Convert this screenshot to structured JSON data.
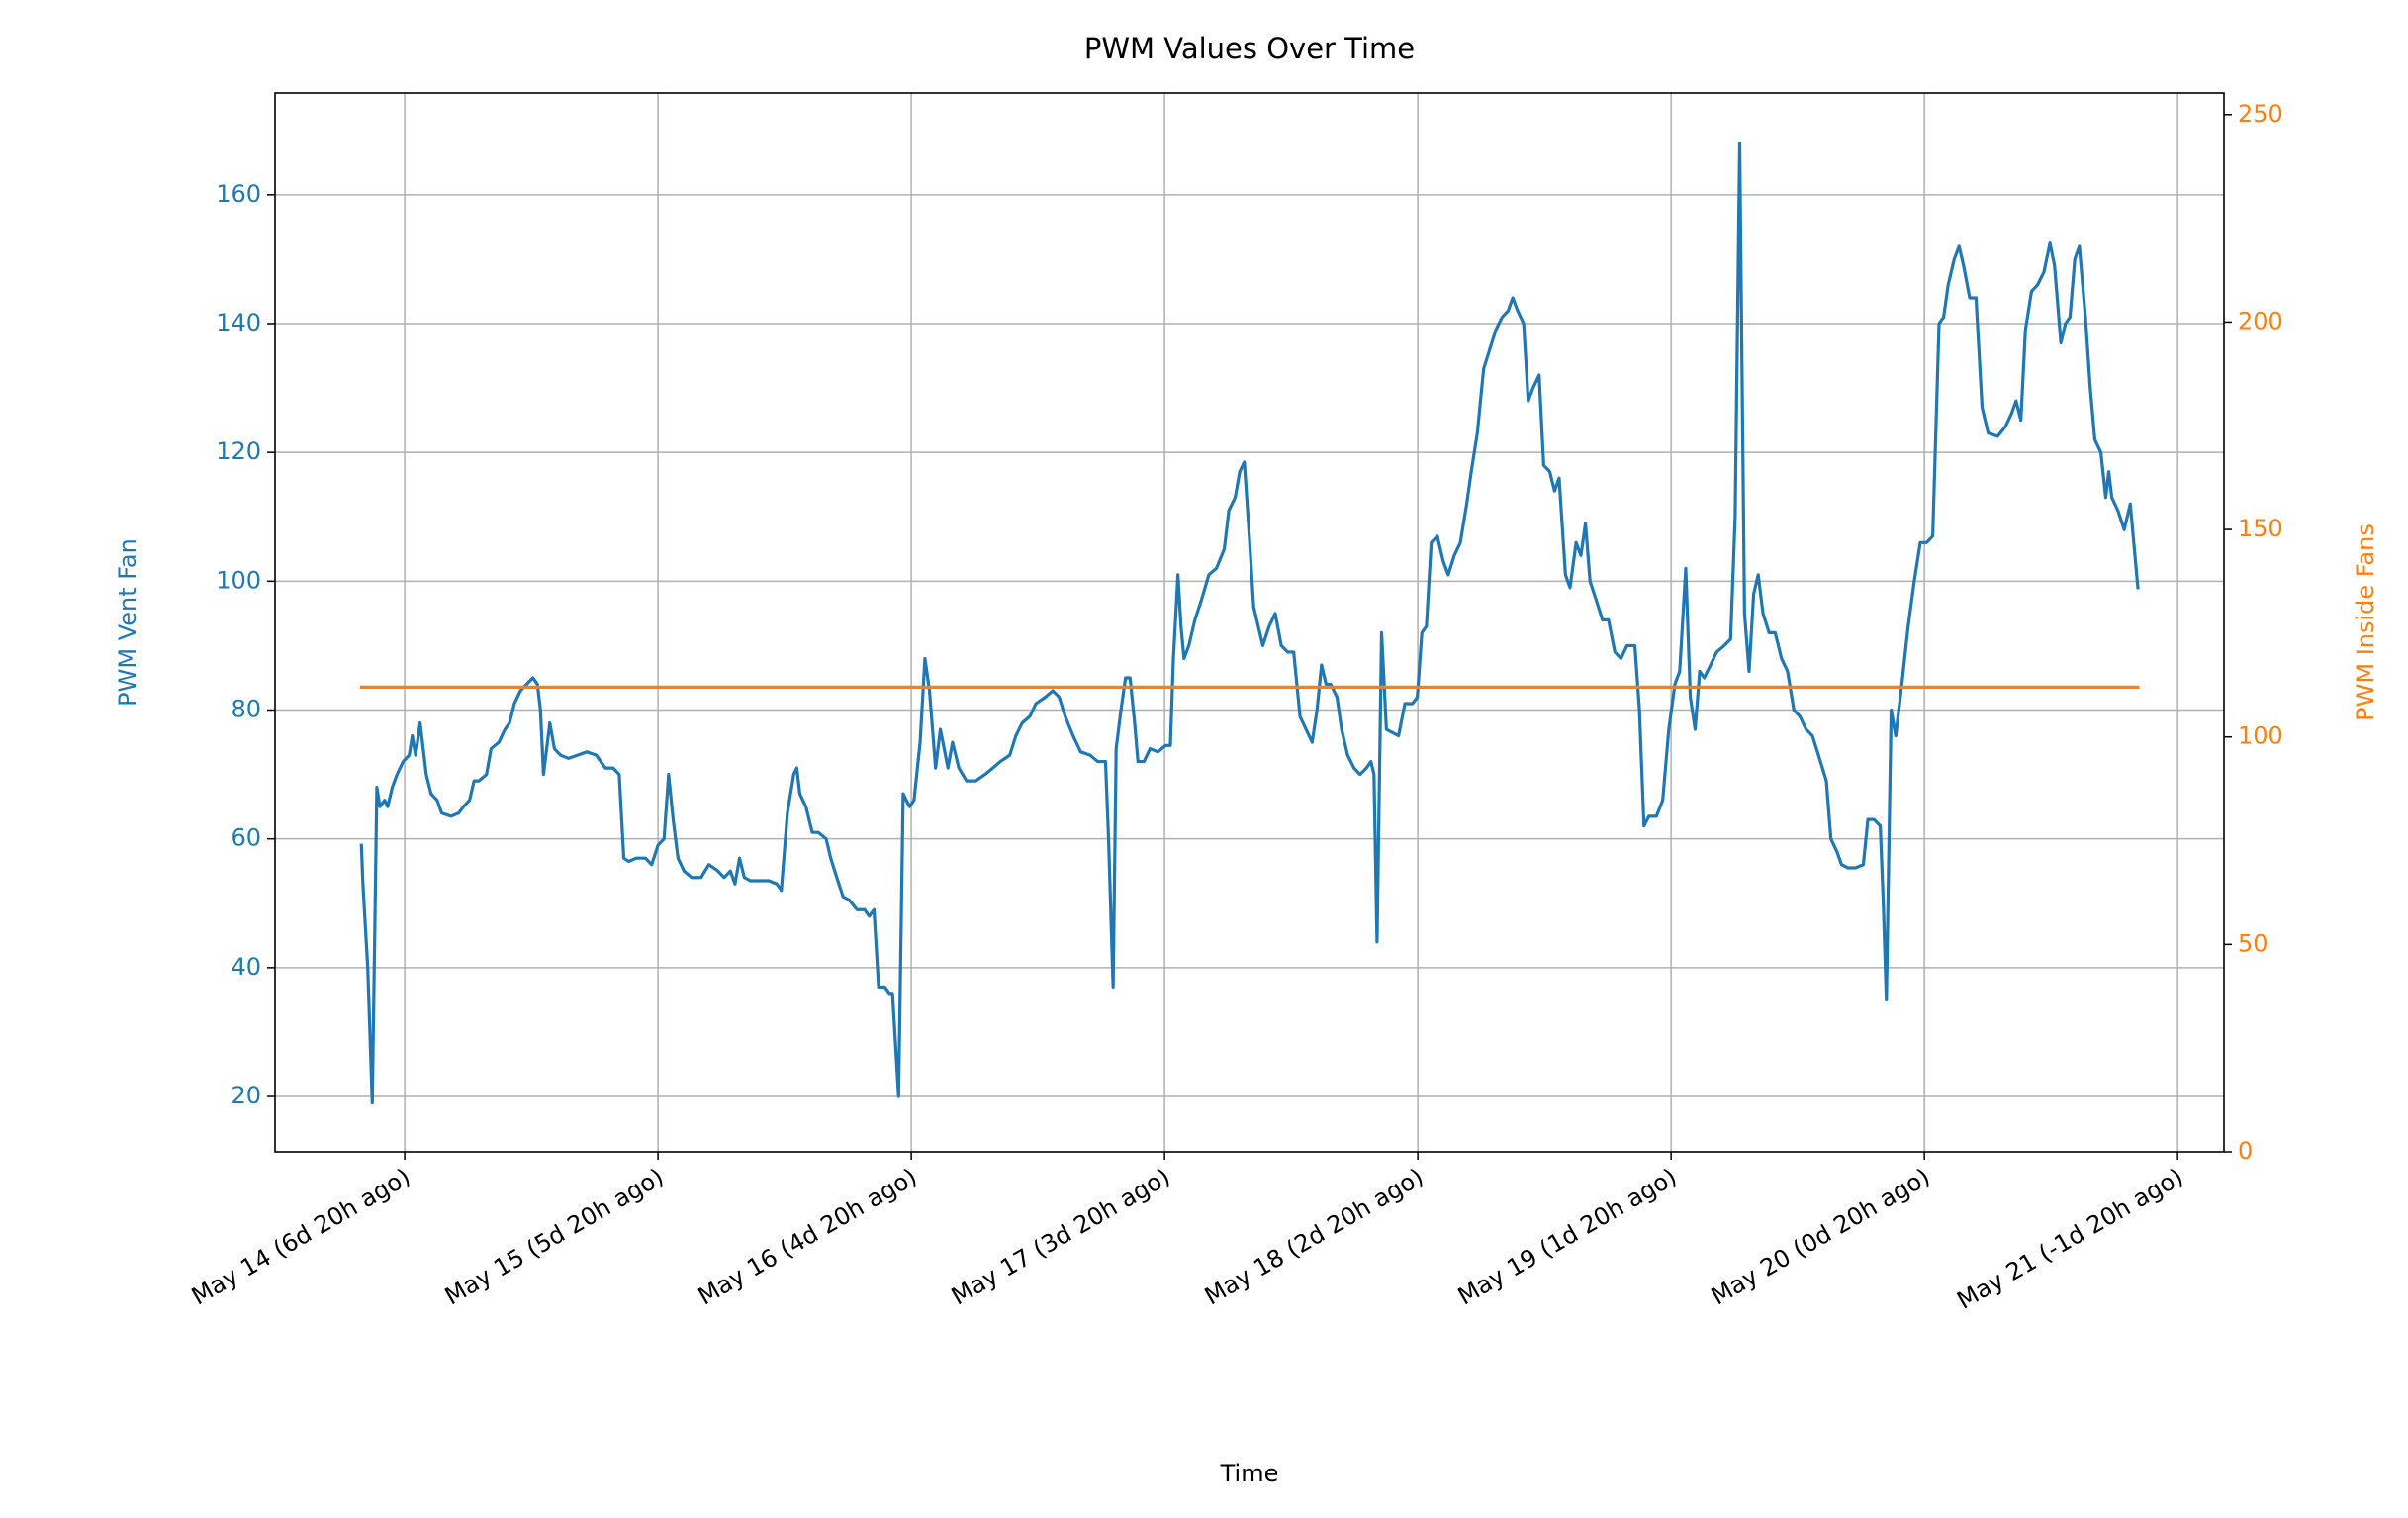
{
  "chart_data": {
    "type": "line",
    "title": "PWM Values Over Time",
    "x_label": "Time",
    "y_label": "PWM Vent Fan",
    "y2_label": "PWM Inside Fans",
    "xlim": [
      13.488,
      21.183
    ],
    "xticks": [
      {
        "value": 14,
        "label": "May 14 (6d 20h ago)"
      },
      {
        "value": 15,
        "label": "May 15 (5d 20h ago)"
      },
      {
        "value": 16,
        "label": "May 16 (4d 20h ago)"
      },
      {
        "value": 17,
        "label": "May 17 (3d 20h ago)"
      },
      {
        "value": 18,
        "label": "May 18 (2d 20h ago)"
      },
      {
        "value": 19,
        "label": "May 19 (1d 20h ago)"
      },
      {
        "value": 20,
        "label": "May 20 (0d 20h ago)"
      },
      {
        "value": 21,
        "label": "May 21 (-1d 20h ago)"
      }
    ],
    "ylim": [
      11.4,
      175.8
    ],
    "yticks": [
      20,
      40,
      60,
      80,
      100,
      120,
      140,
      160
    ],
    "y2lim": [
      0,
      255.2
    ],
    "y2ticks": [
      0,
      50,
      100,
      150,
      200,
      250
    ],
    "grid": true,
    "series": [
      {
        "name": "PWM Vent Fan",
        "color": "#1f77b4",
        "x": [
          13.829,
          13.835,
          13.854,
          13.872,
          13.89,
          13.902,
          13.921,
          13.933,
          13.951,
          13.97,
          13.994,
          14.018,
          14.03,
          14.043,
          14.061,
          14.085,
          14.104,
          14.128,
          14.146,
          14.183,
          14.213,
          14.232,
          14.256,
          14.274,
          14.293,
          14.323,
          14.341,
          14.372,
          14.396,
          14.414,
          14.433,
          14.457,
          14.481,
          14.506,
          14.524,
          14.536,
          14.548,
          14.573,
          14.591,
          14.615,
          14.646,
          14.683,
          14.719,
          14.756,
          14.792,
          14.823,
          14.847,
          14.865,
          14.884,
          14.914,
          14.951,
          14.975,
          15.0,
          15.024,
          15.042,
          15.06,
          15.079,
          15.103,
          15.133,
          15.17,
          15.201,
          15.237,
          15.261,
          15.286,
          15.304,
          15.322,
          15.341,
          15.365,
          15.402,
          15.438,
          15.469,
          15.487,
          15.511,
          15.536,
          15.548,
          15.56,
          15.584,
          15.609,
          15.633,
          15.664,
          15.682,
          15.706,
          15.731,
          15.755,
          15.786,
          15.816,
          15.834,
          15.853,
          15.871,
          15.895,
          15.914,
          15.926,
          15.95,
          15.968,
          15.993,
          16.011,
          16.035,
          16.054,
          16.072,
          16.096,
          16.115,
          16.145,
          16.163,
          16.188,
          16.218,
          16.255,
          16.291,
          16.322,
          16.352,
          16.389,
          16.413,
          16.438,
          16.468,
          16.492,
          16.529,
          16.559,
          16.584,
          16.608,
          16.639,
          16.669,
          16.706,
          16.736,
          16.767,
          16.779,
          16.797,
          16.809,
          16.828,
          16.846,
          16.864,
          16.882,
          16.895,
          16.919,
          16.943,
          16.974,
          17.004,
          17.023,
          17.035,
          17.053,
          17.065,
          17.077,
          17.096,
          17.12,
          17.145,
          17.175,
          17.205,
          17.236,
          17.254,
          17.279,
          17.297,
          17.315,
          17.333,
          17.352,
          17.37,
          17.388,
          17.413,
          17.437,
          17.461,
          17.486,
          17.51,
          17.535,
          17.559,
          17.583,
          17.602,
          17.62,
          17.638,
          17.656,
          17.681,
          17.699,
          17.723,
          17.748,
          17.772,
          17.797,
          17.815,
          17.827,
          17.839,
          17.857,
          17.876,
          17.9,
          17.924,
          17.949,
          17.979,
          17.998,
          18.016,
          18.034,
          18.053,
          18.077,
          18.101,
          18.12,
          18.144,
          18.168,
          18.193,
          18.211,
          18.235,
          18.26,
          18.284,
          18.308,
          18.333,
          18.357,
          18.375,
          18.394,
          18.418,
          18.436,
          18.455,
          18.479,
          18.497,
          18.521,
          18.54,
          18.558,
          18.583,
          18.601,
          18.625,
          18.644,
          18.662,
          18.68,
          18.705,
          18.729,
          18.753,
          18.778,
          18.802,
          18.826,
          18.857,
          18.875,
          18.893,
          18.912,
          18.942,
          18.967,
          18.991,
          19.015,
          19.034,
          19.058,
          19.076,
          19.095,
          19.113,
          19.131,
          19.156,
          19.18,
          19.21,
          19.235,
          19.253,
          19.271,
          19.29,
          19.308,
          19.326,
          19.344,
          19.363,
          19.387,
          19.411,
          19.436,
          19.46,
          19.485,
          19.509,
          19.533,
          19.558,
          19.582,
          19.613,
          19.631,
          19.655,
          19.673,
          19.698,
          19.728,
          19.759,
          19.777,
          19.801,
          19.826,
          19.838,
          19.85,
          19.869,
          19.887,
          19.911,
          19.936,
          19.96,
          19.984,
          20.009,
          20.033,
          20.058,
          20.076,
          20.094,
          20.118,
          20.137,
          20.155,
          20.179,
          20.204,
          20.228,
          20.252,
          20.289,
          20.32,
          20.344,
          20.362,
          20.381,
          20.399,
          20.423,
          20.447,
          20.472,
          20.496,
          20.514,
          20.539,
          20.557,
          20.575,
          20.594,
          20.612,
          20.636,
          20.655,
          20.673,
          20.697,
          20.716,
          20.728,
          20.74,
          20.764,
          20.789,
          20.813,
          20.843
        ],
        "values": [
          59,
          53,
          40,
          19,
          68,
          65,
          66,
          65,
          68,
          70,
          72,
          73,
          76,
          73,
          78,
          70,
          67,
          66,
          64,
          63.5,
          64,
          65,
          66,
          69,
          69,
          70,
          74,
          75,
          77,
          78,
          81,
          83,
          84,
          85,
          84,
          80,
          70,
          78,
          74,
          73,
          72.5,
          73,
          73.5,
          73,
          71,
          71,
          70,
          57,
          56.5,
          57,
          57,
          56,
          59,
          60,
          70,
          63,
          57,
          55,
          54,
          54,
          56,
          55,
          54,
          55,
          53,
          57,
          54,
          53.5,
          53.5,
          53.5,
          53,
          52,
          64,
          70,
          71,
          67,
          65,
          61,
          61,
          60,
          57,
          54,
          51,
          50.5,
          49,
          49,
          48,
          49,
          37,
          37,
          36,
          36,
          20,
          67,
          65,
          66,
          75,
          88,
          83,
          71,
          77,
          71,
          75,
          71,
          69,
          69,
          70,
          71,
          72,
          73,
          76,
          78,
          79,
          81,
          82,
          83,
          82,
          79,
          76,
          73.5,
          73,
          72,
          72,
          60,
          37,
          74,
          80,
          85,
          85,
          78,
          72,
          72,
          74,
          73.5,
          74.5,
          74.5,
          88,
          101,
          93,
          88,
          90,
          94,
          97,
          101,
          102,
          105,
          111,
          113,
          117,
          118.5,
          108,
          96,
          93,
          90,
          93,
          95,
          90,
          89,
          89,
          79,
          77,
          75,
          80,
          87,
          84,
          84,
          82,
          77,
          73,
          71,
          70,
          71,
          72,
          70,
          44,
          92,
          77,
          76.5,
          76,
          81,
          81,
          82,
          92,
          93,
          106,
          107,
          103,
          101,
          104,
          106,
          112,
          117,
          123,
          133,
          136,
          139,
          141,
          142,
          144,
          142,
          140,
          128,
          130,
          132,
          118,
          117,
          114,
          116,
          101,
          99,
          106,
          104,
          109,
          100,
          97,
          94,
          94,
          89,
          88,
          90,
          90,
          80,
          62,
          63.5,
          63.5,
          66,
          77,
          84,
          86,
          102,
          82,
          77,
          86,
          85,
          87,
          89,
          90,
          91,
          110,
          168,
          95,
          86,
          98,
          101,
          95,
          92,
          92,
          88,
          86,
          80,
          79,
          77,
          76,
          73,
          69,
          60,
          58,
          56,
          55.5,
          55.5,
          56,
          63,
          63,
          62,
          50,
          35,
          80,
          76,
          84,
          93,
          100,
          106,
          106,
          107,
          140,
          141,
          146,
          150,
          152,
          149,
          144,
          144,
          127,
          123,
          122.5,
          124,
          126,
          128,
          125,
          139,
          145,
          146,
          148,
          152.5,
          149,
          137,
          140,
          141,
          150,
          152,
          141,
          130,
          122,
          120,
          113,
          117,
          113,
          111,
          108,
          112,
          99
        ]
      },
      {
        "name": "PWM Inside Fans",
        "color": "#ff7f0e",
        "axis": "y2",
        "x": [
          13.829,
          20.843
        ],
        "values": [
          112,
          112
        ]
      }
    ]
  }
}
